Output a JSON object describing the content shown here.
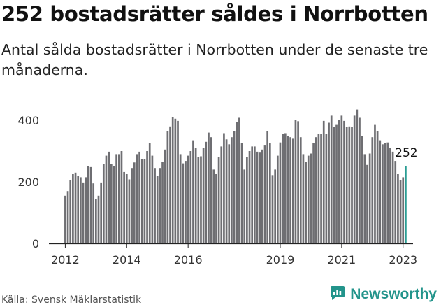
{
  "title": "252 bostadsrätter såldes i Norrbotten",
  "subtitle": "Antal sålda bostadsrätter i Norrbotten under de senaste tre månaderna.",
  "source": "Källa: Svensk Mäklarstatistik",
  "brand": "Newsworthy",
  "colors": {
    "bar": "#6e6e72",
    "highlight": "#2a9d94",
    "brand": "#23948b"
  },
  "chart_data": {
    "type": "bar",
    "title": "252 bostadsrätter såldes i Norrbotten",
    "subtitle": "Antal sålda bostadsrätter i Norrbotten under de senaste tre månaderna.",
    "x_tick_labels": [
      "2012",
      "2014",
      "2016",
      "2019",
      "2021",
      "2023"
    ],
    "y_tick_labels": [
      "0",
      "200",
      "400"
    ],
    "ylim": [
      0,
      450
    ],
    "grid": false,
    "start": "2012-01",
    "frequency": "monthly",
    "values": [
      155,
      170,
      205,
      225,
      230,
      220,
      215,
      198,
      215,
      250,
      248,
      195,
      145,
      155,
      198,
      258,
      285,
      298,
      258,
      252,
      290,
      290,
      300,
      232,
      225,
      208,
      245,
      263,
      290,
      298,
      275,
      275,
      300,
      325,
      285,
      245,
      220,
      245,
      265,
      305,
      365,
      380,
      410,
      405,
      398,
      290,
      260,
      268,
      285,
      300,
      335,
      310,
      280,
      283,
      310,
      330,
      360,
      345,
      240,
      225,
      280,
      315,
      358,
      338,
      322,
      345,
      365,
      395,
      408,
      325,
      240,
      280,
      300,
      315,
      315,
      298,
      295,
      305,
      318,
      365,
      325,
      222,
      240,
      285,
      328,
      355,
      358,
      350,
      345,
      340,
      400,
      397,
      345,
      290,
      265,
      285,
      292,
      325,
      345,
      355,
      355,
      398,
      355,
      392,
      415,
      378,
      385,
      400,
      415,
      398,
      378,
      380,
      378,
      415,
      435,
      408,
      348,
      290,
      255,
      292,
      345,
      385,
      365,
      335,
      322,
      325,
      328,
      310,
      298,
      268,
      225,
      205,
      215,
      252
    ],
    "annotation": "252"
  }
}
